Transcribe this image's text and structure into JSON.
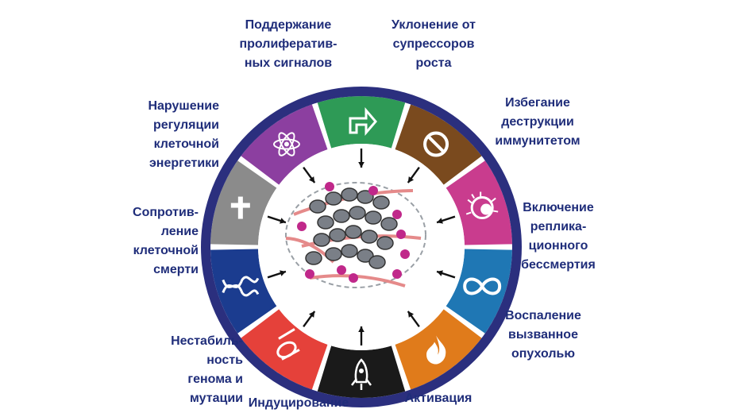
{
  "colors": {
    "ring_outer": "#2b2f7e",
    "label_text": "#1f2d7a",
    "arrow": "#111111"
  },
  "segments": [
    {
      "name": "green",
      "color": "#2e9a56",
      "icon": "arrow-turn-icon"
    },
    {
      "name": "brown",
      "color": "#7a4a1e",
      "icon": "no-entry-icon"
    },
    {
      "name": "magenta",
      "color": "#c93c8e",
      "icon": "immune-cell-icon"
    },
    {
      "name": "blue",
      "color": "#1f77b4",
      "icon": "infinity-icon"
    },
    {
      "name": "orange",
      "color": "#e07b1b",
      "icon": "flame-icon"
    },
    {
      "name": "black",
      "color": "#1a1a1a",
      "icon": "rocket-icon"
    },
    {
      "name": "red",
      "color": "#e5413a",
      "icon": "vessel-icon"
    },
    {
      "name": "navy",
      "color": "#1b3c8f",
      "icon": "dna-icon"
    },
    {
      "name": "gray",
      "color": "#8b8b8b",
      "icon": "cross-icon"
    },
    {
      "name": "purple",
      "color": "#8c3fa0",
      "icon": "atom-icon"
    }
  ],
  "labels": {
    "proliferative": "Поддержание\nпролифератив-\nных сигналов",
    "growth_suppressors": "Уклонение от\nсупрессоров\nроста",
    "immune": "Избегание\nдеструкции\nиммунитетом",
    "immortality": "Включение\nреплика-\nционного\nбессмертия",
    "inflammation": "Воспаление\nвызванное\nопухолью",
    "activation": "Активация",
    "angiogenesis": "Индуцирование",
    "genome": "Нестабиль-\nность\nгенома и\nмутации",
    "cell_death": "Сопротив-\nление\nклеточной\nсмерти",
    "energetics": "Нарушение\nрегуляции\nклеточной\nэнергетики"
  }
}
